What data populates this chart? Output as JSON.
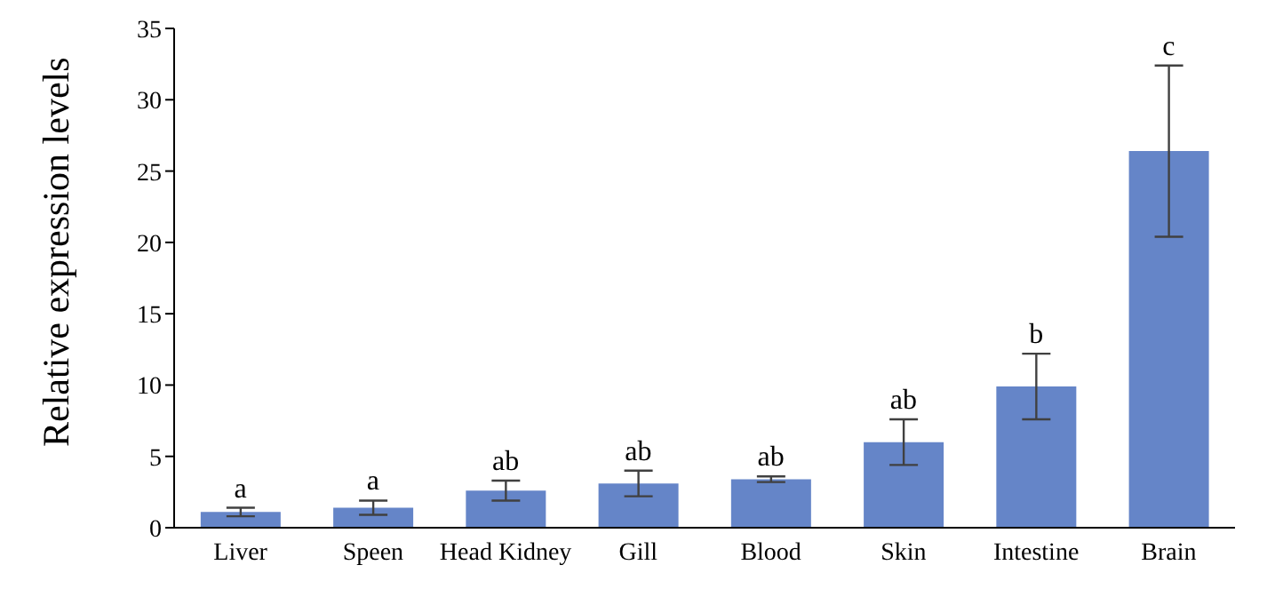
{
  "chart_data": {
    "type": "bar",
    "ylabel": "Relative expression levels",
    "categories": [
      "Liver",
      "Speen",
      "Head Kidney",
      "Gill",
      "Blood",
      "Skin",
      "Intestine",
      "Brain"
    ],
    "values": [
      1.1,
      1.4,
      2.6,
      3.1,
      3.4,
      6.0,
      9.9,
      26.4
    ],
    "errors": [
      0.3,
      0.5,
      0.7,
      0.9,
      0.2,
      1.6,
      2.3,
      6.0
    ],
    "color": "#6585c8",
    "ylim": [
      0,
      35
    ],
    "yticks": [
      0,
      5,
      10,
      15,
      20,
      25,
      30,
      35
    ],
    "grid": false,
    "legend": false,
    "annotations": [
      {
        "text": "a",
        "x": "Liver",
        "y": 1.4
      },
      {
        "text": "a",
        "x": "Speen",
        "y": 1.9
      },
      {
        "text": "ab",
        "x": "Head Kidney",
        "y": 3.3
      },
      {
        "text": "ab",
        "x": "Gill",
        "y": 4.0
      },
      {
        "text": "ab",
        "x": "Blood",
        "y": 3.6
      },
      {
        "text": "ab",
        "x": "Skin",
        "y": 7.6
      },
      {
        "text": "b",
        "x": "Intestine",
        "y": 12.2
      },
      {
        "text": "c",
        "x": "Brain",
        "y": 32.4
      }
    ]
  }
}
